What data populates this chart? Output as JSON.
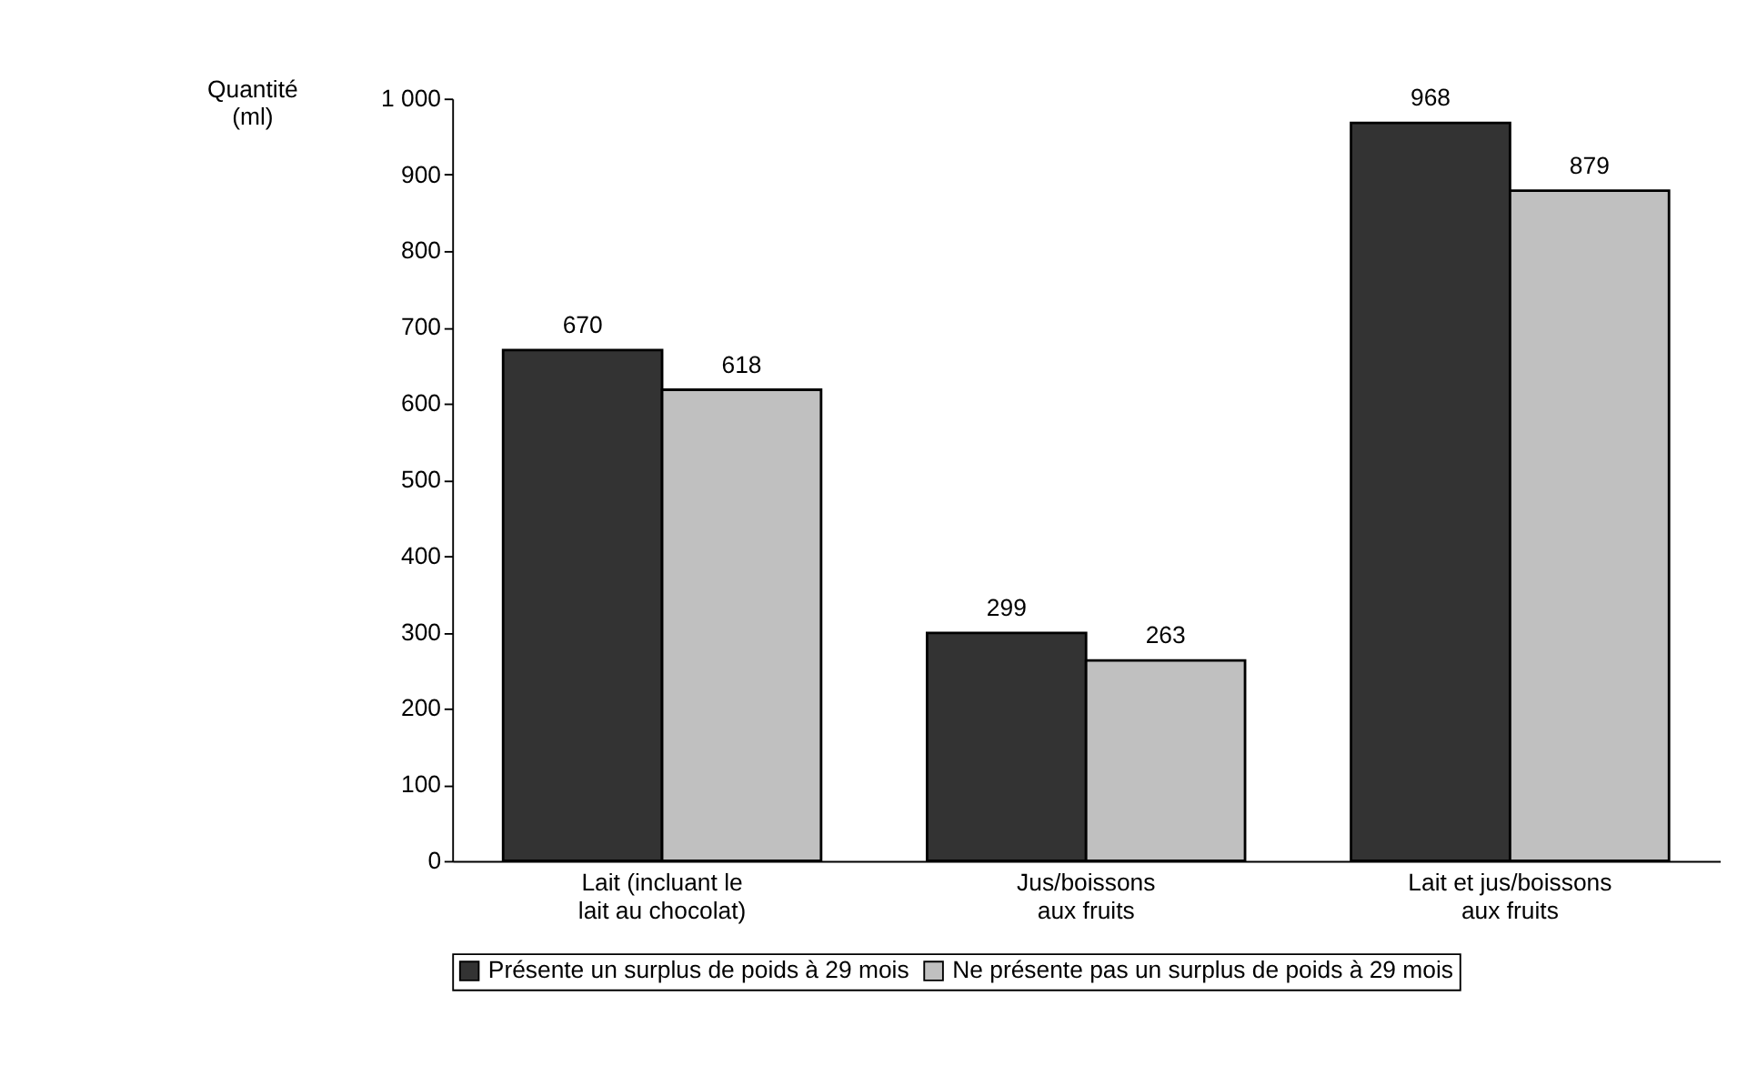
{
  "chart_data": {
    "type": "bar",
    "ylabel": "Quantité\n(ml)",
    "categories": [
      "Lait (incluant le\nlait au chocolat)",
      "Jus/boissons\naux fruits",
      "Lait et jus/boissons\naux fruits"
    ],
    "series": [
      {
        "name": "Présente un surplus de poids à 29 mois",
        "color": "#333333",
        "values": [
          670,
          299,
          968
        ]
      },
      {
        "name": "Ne présente pas un surplus de poids à 29 mois",
        "color": "#c0c0c0",
        "values": [
          618,
          263,
          879
        ]
      }
    ],
    "ylim": [
      0,
      1000
    ],
    "yticks": [
      0,
      100,
      200,
      300,
      400,
      500,
      600,
      700,
      800,
      900,
      {
        "value": 1000,
        "label": "1 000"
      }
    ],
    "data_labels": true,
    "grid": false,
    "legend": "bottom"
  }
}
